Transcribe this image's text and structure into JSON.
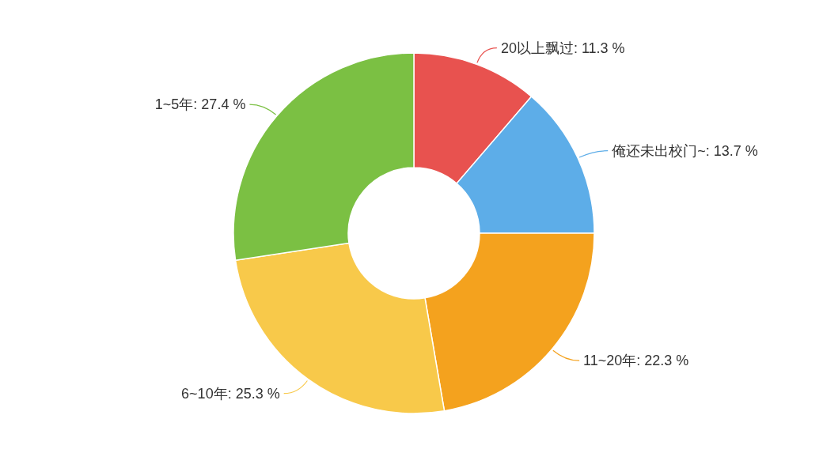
{
  "chart_data": {
    "type": "donut",
    "categories": [
      "20以上飘过",
      "俺还未出校门~",
      "11~20年",
      "6~10年",
      "1~5年"
    ],
    "values": [
      11.3,
      13.7,
      22.3,
      25.3,
      27.4
    ],
    "value_labels": [
      "11.3 %",
      "13.7 %",
      "22.3 %",
      "25.3 %",
      "27.4 %"
    ],
    "colors": [
      "#e8524f",
      "#5dade8",
      "#f4a21e",
      "#f8c94a",
      "#7bc043"
    ],
    "legend": false
  }
}
